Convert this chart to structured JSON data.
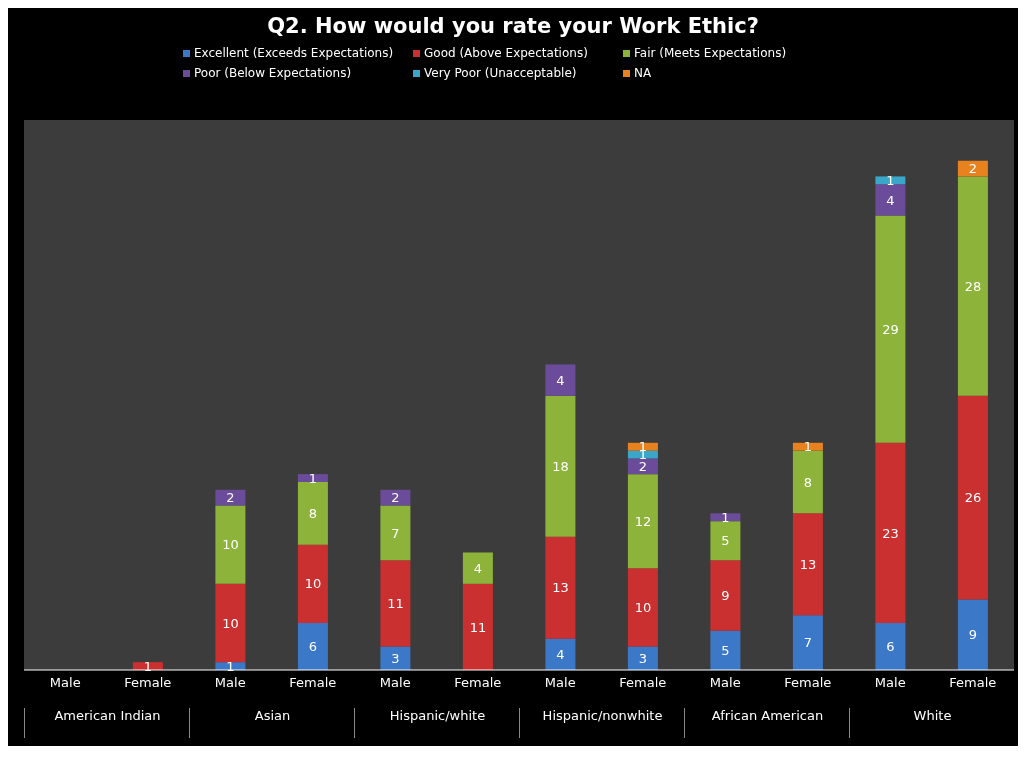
{
  "chart_data": {
    "type": "bar",
    "title": "Q2. How would you rate your Work Ethic?",
    "stacked": true,
    "legend": "top",
    "data_labels": true,
    "tick_labels": "x",
    "categories": [
      "Male",
      "Female",
      "Male",
      "Female",
      "Male",
      "Female",
      "Male",
      "Female",
      "Male",
      "Female",
      "Male",
      "Female"
    ],
    "annotations": [
      "American Indian",
      "Asian",
      "Hispanic/white",
      "Hispanic/nonwhite",
      "African American",
      "White"
    ],
    "series": [
      {
        "name": "Excellent (Exceeds Expectations)",
        "color": "#3b78c8",
        "values": [
          null,
          null,
          1,
          6,
          3,
          null,
          4,
          3,
          5,
          7,
          6,
          9
        ]
      },
      {
        "name": "Good (Above Expectations)",
        "color": "#c9302f",
        "values": [
          null,
          1,
          10,
          10,
          11,
          11,
          13,
          10,
          9,
          13,
          23,
          26
        ]
      },
      {
        "name": "Fair (Meets Expectations)",
        "color": "#8db33a",
        "values": [
          null,
          null,
          10,
          8,
          7,
          4,
          18,
          12,
          5,
          8,
          29,
          28
        ]
      },
      {
        "name": "Poor (Below Expectations)",
        "color": "#6b4c9a",
        "values": [
          null,
          null,
          2,
          1,
          2,
          null,
          4,
          2,
          1,
          null,
          4,
          null
        ]
      },
      {
        "name": "Very Poor (Unacceptable)",
        "color": "#3aa7c9",
        "values": [
          null,
          null,
          null,
          null,
          null,
          null,
          null,
          1,
          null,
          null,
          1,
          null
        ]
      },
      {
        "name": "NA",
        "color": "#e8821e",
        "values": [
          null,
          null,
          null,
          null,
          null,
          null,
          null,
          1,
          null,
          1,
          null,
          2
        ]
      }
    ]
  }
}
